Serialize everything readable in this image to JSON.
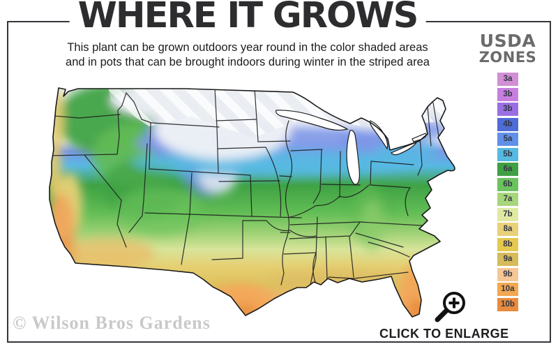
{
  "header": {
    "title": "WHERE IT GROWS",
    "subtitle_line1": "This plant can be grown outdoors year round in the color shaded areas",
    "subtitle_line2": "and in pots that can be brought indoors during winter in the striped area"
  },
  "legend": {
    "heading_top": "USDA",
    "heading_bottom": "ZONES",
    "zones": [
      {
        "label": "3a",
        "color": "#d18fd4"
      },
      {
        "label": "3b",
        "color": "#c77fdf"
      },
      {
        "label": "3b",
        "color": "#9b6fe4"
      },
      {
        "label": "4b",
        "color": "#4f6bd6"
      },
      {
        "label": "5a",
        "color": "#6190e8"
      },
      {
        "label": "5b",
        "color": "#55b9e0"
      },
      {
        "label": "6a",
        "color": "#41a044"
      },
      {
        "label": "6b",
        "color": "#6bc35e"
      },
      {
        "label": "7a",
        "color": "#a7d67b"
      },
      {
        "label": "7b",
        "color": "#e0e9a2"
      },
      {
        "label": "8a",
        "color": "#e8d179"
      },
      {
        "label": "8b",
        "color": "#e5c84f"
      },
      {
        "label": "9a",
        "color": "#d5bb5b"
      },
      {
        "label": "9b",
        "color": "#f6c795"
      },
      {
        "label": "10a",
        "color": "#f2a851"
      },
      {
        "label": "10b",
        "color": "#e78b3e"
      }
    ]
  },
  "watermark": "© Wilson Bros Gardens",
  "enlarge": {
    "label": "CLICK TO ENLARGE",
    "icon": "magnifier-zoom-in-icon"
  }
}
